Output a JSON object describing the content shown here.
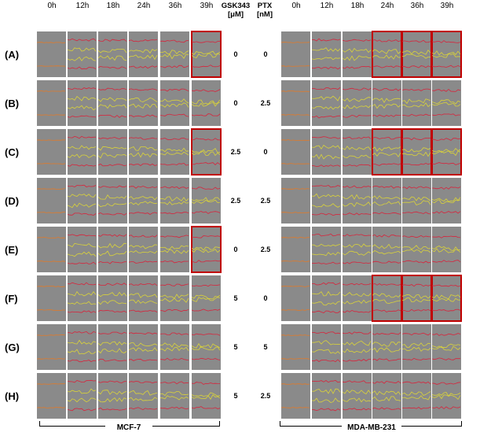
{
  "time_points": [
    "0h",
    "12h",
    "18h",
    "24h",
    "36h",
    "39h"
  ],
  "conc_headers": {
    "gsk": [
      "GSK343",
      "[μM]"
    ],
    "ptx": [
      "PTX",
      "[nM]"
    ]
  },
  "rows": [
    {
      "label": "(A)",
      "gsk": "0",
      "ptx": "0"
    },
    {
      "label": "(B)",
      "gsk": "0",
      "ptx": "2.5"
    },
    {
      "label": "(C)",
      "gsk": "2.5",
      "ptx": "0"
    },
    {
      "label": "(D)",
      "gsk": "2.5",
      "ptx": "2.5"
    },
    {
      "label": "(E)",
      "gsk": "0",
      "ptx": "2.5"
    },
    {
      "label": "(F)",
      "gsk": "5",
      "ptx": "0"
    },
    {
      "label": "(G)",
      "gsk": "5",
      "ptx": "5"
    },
    {
      "label": "(H)",
      "gsk": "5",
      "ptx": "2.5"
    }
  ],
  "panels": {
    "left": {
      "cell_line": "MCF-7",
      "highlighted": {
        "A": [
          5
        ],
        "C": [
          5
        ],
        "E": [
          5
        ]
      }
    },
    "right": {
      "cell_line": "MDA-MB-231",
      "highlighted": {
        "A": [
          3,
          4,
          5
        ],
        "C": [
          3,
          4,
          5
        ],
        "F": [
          3,
          4,
          5
        ]
      }
    }
  },
  "colors": {
    "tile": "#8a8a8a",
    "highlight": "#c00000",
    "edge_red": "#d8243c",
    "edge_yellow": "#d9d23a",
    "edge_orange": "#e07a2a"
  }
}
